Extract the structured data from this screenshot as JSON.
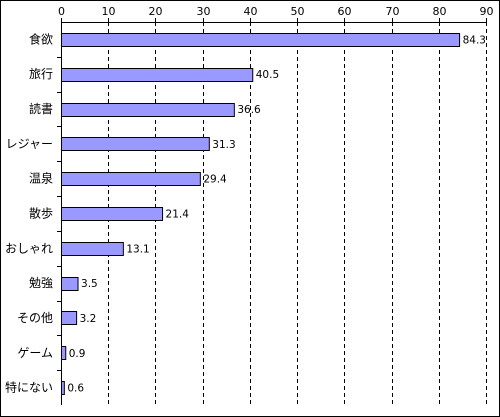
{
  "chart_data": {
    "type": "bar",
    "orientation": "horizontal",
    "categories": [
      "食欲",
      "旅行",
      "読書",
      "レジャー",
      "温泉",
      "散歩",
      "おしゃれ",
      "勉強",
      "その他",
      "ゲーム",
      "特にない"
    ],
    "values": [
      84.3,
      40.5,
      36.6,
      31.3,
      29.4,
      21.4,
      13.1,
      3.5,
      3.2,
      0.9,
      0.6
    ],
    "value_labels": [
      "84.3",
      "40.5",
      "36.6",
      "31.3",
      "29.4",
      "21.4",
      "13.1",
      "3.5",
      "3.2",
      "0.9",
      "0.6"
    ],
    "xlim": [
      0,
      90
    ],
    "xticks": [
      "0",
      "10",
      "20",
      "30",
      "40",
      "50",
      "60",
      "70",
      "80",
      "90"
    ],
    "x_axis_position": "top",
    "grid": "vertical dashed",
    "bar_color": "#9999ff",
    "bar_edge_color": "#000000",
    "title": "",
    "xlabel": "",
    "ylabel": ""
  }
}
